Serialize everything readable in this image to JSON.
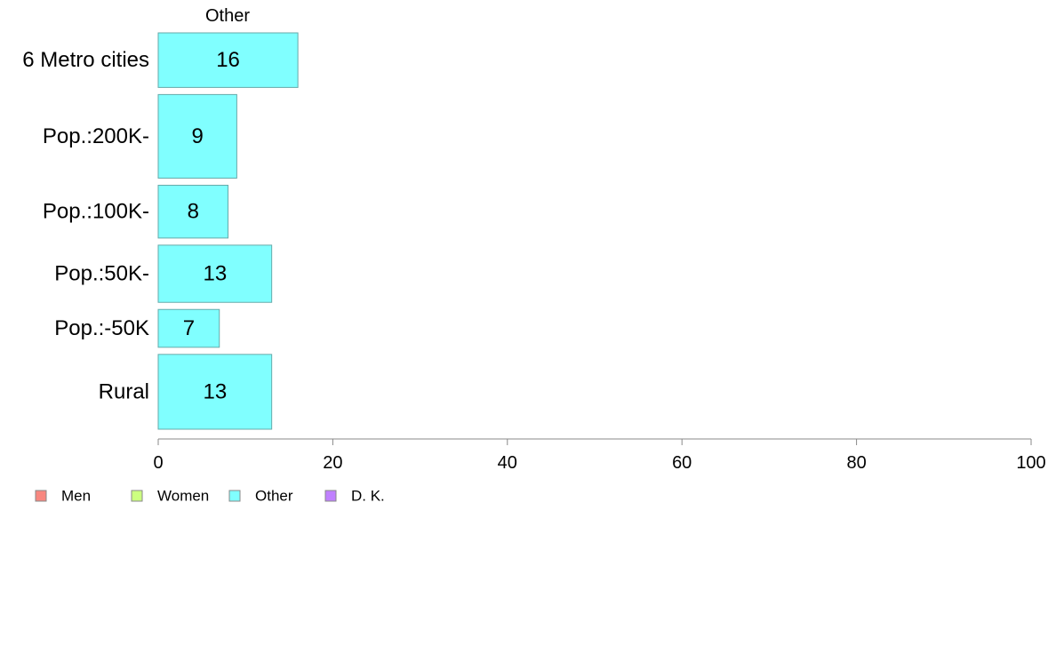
{
  "chart_data": {
    "type": "bar",
    "orientation": "horizontal",
    "title": "Other",
    "categories": [
      "6 Metro cities",
      "Pop.:200K-",
      "Pop.:100K-",
      "Pop.:50K-",
      "Pop.:-50K",
      "Rural"
    ],
    "series": [
      {
        "name": "Other",
        "color": "#80ffff",
        "values": [
          16,
          9,
          8,
          13,
          7,
          13
        ],
        "labels": [
          "16",
          "9",
          "8",
          "13",
          "7",
          "13"
        ]
      }
    ],
    "category_weights": [
      62,
      95,
      60,
      65,
      43,
      85
    ],
    "xlim": [
      0,
      100
    ],
    "xticks": [
      0,
      20,
      40,
      60,
      80,
      100
    ],
    "xtick_labels": [
      "0",
      "20",
      "40",
      "60",
      "80",
      "100"
    ],
    "xlabel": "",
    "ylabel": "",
    "grid": false,
    "legend": {
      "position": "bottom-left",
      "items": [
        {
          "label": "Men",
          "color": "#f8877f"
        },
        {
          "label": "Women",
          "color": "#ccff80"
        },
        {
          "label": "Other",
          "color": "#80ffff"
        },
        {
          "label": "D. K.",
          "color": "#c080ff"
        }
      ]
    }
  }
}
